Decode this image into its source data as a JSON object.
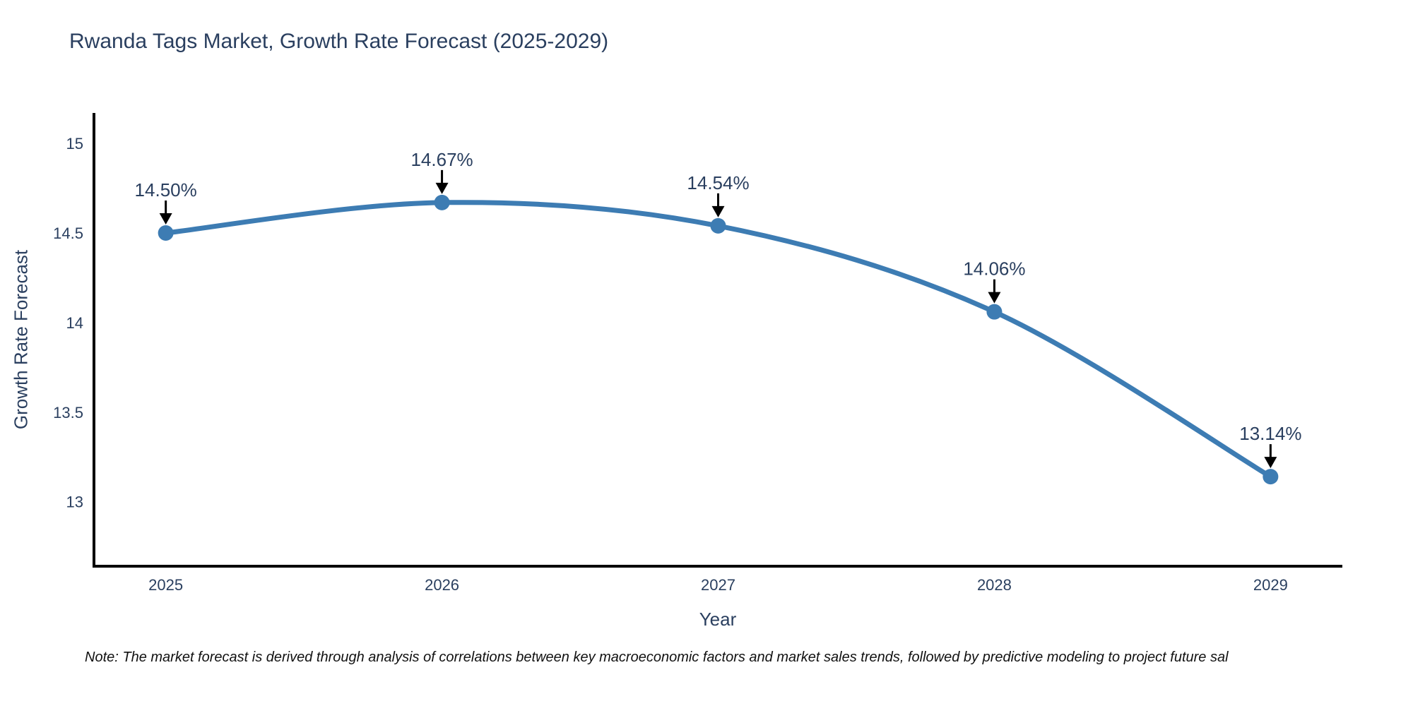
{
  "title": "Rwanda Tags Market, Growth Rate Forecast (2025-2029)",
  "note": "Note: The market forecast is derived through analysis of correlations between key macroeconomic factors and market sales trends, followed by predictive modeling to project future sal",
  "colors": {
    "line": "#3d7cb3",
    "marker": "#3d7cb3",
    "text": "#2a3f5f",
    "axis": "#000000",
    "arrow": "#000000",
    "note_text": "#111111",
    "background": "#ffffff"
  },
  "chart_data": {
    "type": "line",
    "title": "Rwanda Tags Market, Growth Rate Forecast (2025-2029)",
    "xlabel": "Year",
    "ylabel": "Growth Rate Forecast",
    "x": [
      2025,
      2026,
      2027,
      2028,
      2029
    ],
    "values": [
      14.5,
      14.67,
      14.54,
      14.06,
      13.14
    ],
    "point_labels": [
      "14.50%",
      "14.67%",
      "14.54%",
      "14.06%",
      "13.14%"
    ],
    "series_name": "Growth Rate Forecast",
    "x_tick_labels": [
      "2025",
      "2026",
      "2027",
      "2028",
      "2029"
    ],
    "y_ticks": [
      13,
      13.5,
      14,
      14.5,
      15
    ],
    "y_tick_labels": [
      "13",
      "13.5",
      "14",
      "14.5",
      "15"
    ],
    "xlim": [
      2024.74,
      2029.26
    ],
    "ylim": [
      12.64,
      15.17
    ],
    "grid": false,
    "legend": false,
    "line_shape": "spline",
    "marker": "circle",
    "annotations_have_arrows": true
  }
}
